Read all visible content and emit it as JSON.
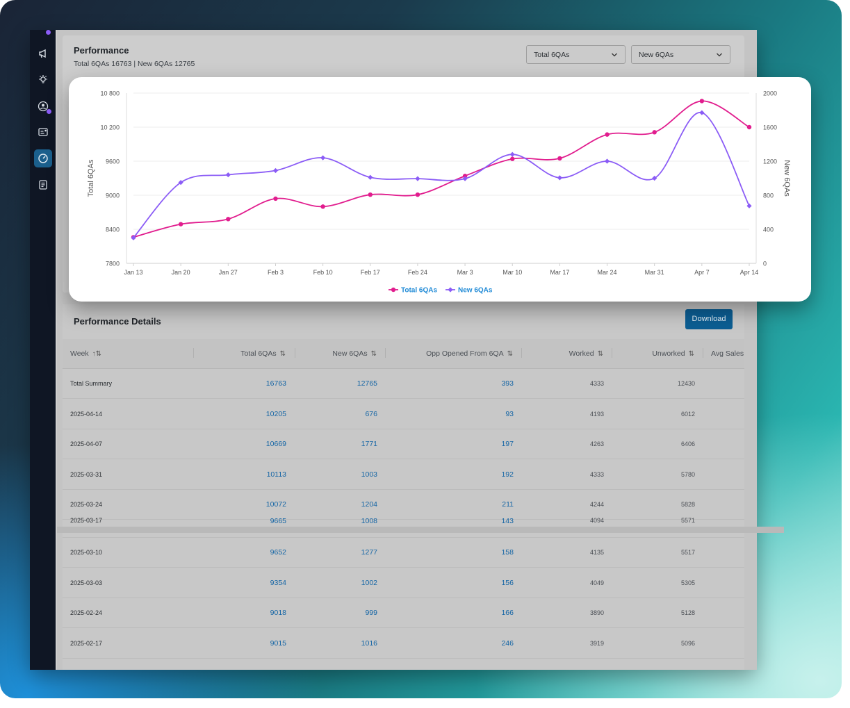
{
  "colors": {
    "total_series": "#e11d8e",
    "new_series": "#8b5cf6",
    "link": "#1465a5",
    "download_bg": "#0c5e93",
    "sidebar_bg": "#0f1624",
    "sidebar_active": "#1b5f8c"
  },
  "sidebar": {
    "icons": [
      "megaphone-icon",
      "lightbulb-icon",
      "user-circle-icon",
      "id-card-icon",
      "gauge-icon",
      "notes-icon"
    ],
    "active": "gauge-icon"
  },
  "performance": {
    "title": "Performance",
    "subtitle": "Total 6QAs 16763 | New 6QAs 12765",
    "select_1": "Total 6QAs",
    "select_2": "New 6QAs"
  },
  "chart_data": {
    "type": "line",
    "categories": [
      "Jan 13",
      "Jan 20",
      "Jan 27",
      "Feb 3",
      "Feb 10",
      "Feb 17",
      "Feb 24",
      "Mar 3",
      "Mar 10",
      "Mar 17",
      "Mar 24",
      "Mar 31",
      "Apr 7",
      "Apr 14"
    ],
    "series": [
      {
        "name": "Total 6QAs",
        "axis": "left",
        "values": [
          8260,
          8490,
          8580,
          8940,
          8800,
          9010,
          9010,
          9340,
          9640,
          9650,
          10070,
          10110,
          10660,
          10200
        ]
      },
      {
        "name": "New 6QAs",
        "axis": "right",
        "values": [
          300,
          950,
          1040,
          1090,
          1240,
          1010,
          995,
          995,
          1280,
          1005,
          1200,
          1000,
          1770,
          675
        ]
      }
    ],
    "ylabel": "Total 6QAs",
    "y2label": "New 6QAs",
    "ylim": [
      7800,
      10800
    ],
    "y2lim": [
      0,
      2000
    ],
    "yticks": [
      "7800",
      "8400",
      "9000",
      "9600",
      "10 200",
      "10 800"
    ],
    "y2ticks": [
      "0",
      "400",
      "800",
      "1200",
      "1600",
      "2000"
    ],
    "grid": true,
    "legend": "bottom"
  },
  "details": {
    "title": "Performance Details",
    "download_label": "Download",
    "columns": [
      "Week",
      "Total 6QAs",
      "New 6QAs",
      "Opp Opened From 6QA",
      "Worked",
      "Unworked",
      "Avg Sales"
    ],
    "rows_top": [
      [
        "Total Summary",
        "16763",
        "12765",
        "393",
        "4333",
        "12430"
      ],
      [
        "2025-04-14",
        "10205",
        "676",
        "93",
        "4193",
        "6012"
      ],
      [
        "2025-04-07",
        "10669",
        "1771",
        "197",
        "4263",
        "6406"
      ],
      [
        "2025-03-31",
        "10113",
        "1003",
        "192",
        "4333",
        "5780"
      ],
      [
        "2025-03-24",
        "10072",
        "1204",
        "211",
        "4244",
        "5828"
      ]
    ],
    "partial_row": [
      "2025-03-17",
      "9665",
      "1008",
      "143",
      "4094",
      "5571"
    ],
    "rows_bottom": [
      [
        "2025-03-10",
        "9652",
        "1277",
        "158",
        "4135",
        "5517"
      ],
      [
        "2025-03-03",
        "9354",
        "1002",
        "156",
        "4049",
        "5305"
      ],
      [
        "2025-02-24",
        "9018",
        "999",
        "166",
        "3890",
        "5128"
      ],
      [
        "2025-02-17",
        "9015",
        "1016",
        "246",
        "3919",
        "5096"
      ]
    ]
  }
}
